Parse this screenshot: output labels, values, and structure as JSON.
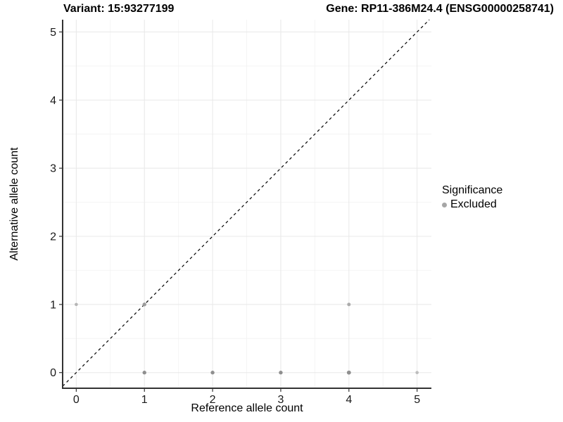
{
  "titles": {
    "variant": "Variant: 15:93277199",
    "gene": "Gene: RP11-386M24.4 (ENSG00000258741)"
  },
  "legend": {
    "title": "Significance",
    "items": [
      {
        "label": "Excluded",
        "color": "#a6a6a6"
      }
    ]
  },
  "chart_data": {
    "type": "scatter",
    "xlabel": "Reference allele count",
    "ylabel": "Alternative allele count",
    "xlim": [
      -0.2,
      5.21
    ],
    "ylim": [
      -0.23,
      5.18
    ],
    "xticks": [
      0,
      1,
      2,
      3,
      4,
      5
    ],
    "yticks": [
      0,
      1,
      2,
      3,
      4,
      5
    ],
    "grid": "major+minor",
    "legend_position": "right",
    "identity_line": {
      "slope": 1,
      "intercept": 0,
      "style": "dashed",
      "color": "#000000"
    },
    "series": [
      {
        "name": "Excluded",
        "points": [
          {
            "x": 0,
            "y": 1,
            "shade": "#b5b5b5",
            "r": 2.3
          },
          {
            "x": 1,
            "y": 1,
            "shade": "#9c9c9c",
            "r": 2.7
          },
          {
            "x": 1,
            "y": 0,
            "shade": "#8f8f8f",
            "r": 2.7
          },
          {
            "x": 2,
            "y": 0,
            "shade": "#8f8f8f",
            "r": 2.7
          },
          {
            "x": 3,
            "y": 0,
            "shade": "#8f8f8f",
            "r": 2.7
          },
          {
            "x": 4,
            "y": 0,
            "shade": "#8f8f8f",
            "r": 2.9
          },
          {
            "x": 4,
            "y": 1,
            "shade": "#ababab",
            "r": 2.5
          },
          {
            "x": 5,
            "y": 0,
            "shade": "#bdbdbd",
            "r": 2.3
          }
        ]
      }
    ],
    "colors": {
      "grid_major": "#e8e8e8",
      "grid_minor": "#f4f4f4",
      "axis": "#333333",
      "tick_label": "#1a1a1a"
    }
  }
}
